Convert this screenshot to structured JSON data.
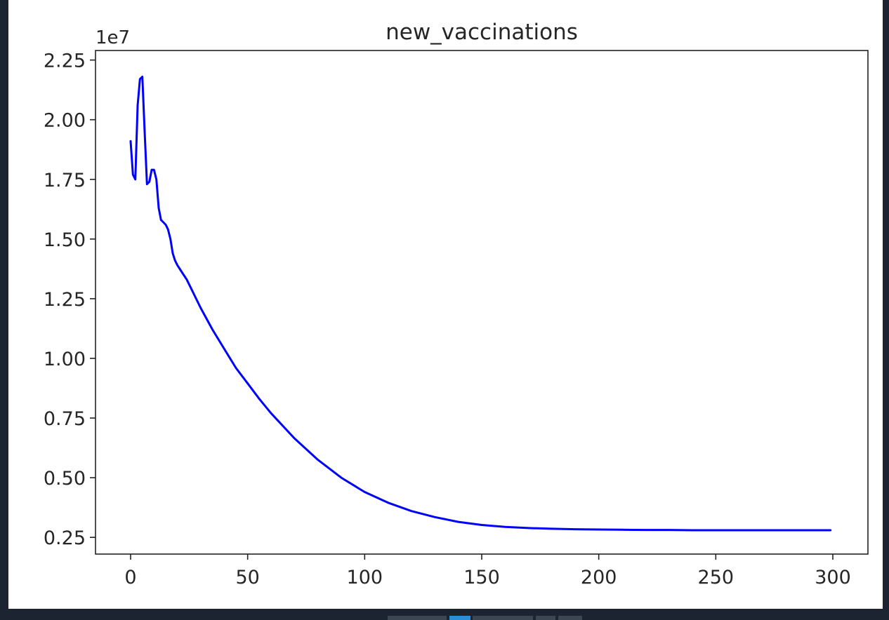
{
  "chart_data": {
    "type": "line",
    "title": "new_vaccinations",
    "xlabel": "",
    "ylabel": "",
    "y_offset_text": "1e7",
    "xlim": [
      -15,
      315
    ],
    "ylim": [
      0.18,
      2.29
    ],
    "x_ticks": [
      0,
      50,
      100,
      150,
      200,
      250,
      300
    ],
    "y_ticks": [
      0.25,
      0.5,
      0.75,
      1.0,
      1.25,
      1.5,
      1.75,
      2.0,
      2.25
    ],
    "x_tick_labels": [
      "0",
      "50",
      "100",
      "150",
      "200",
      "250",
      "300"
    ],
    "y_tick_labels": [
      "0.25",
      "0.50",
      "0.75",
      "1.00",
      "1.25",
      "1.50",
      "1.75",
      "2.00",
      "2.25"
    ],
    "grid": false,
    "series": [
      {
        "color": "#0000ff",
        "x": [
          0,
          1,
          2,
          3,
          4,
          5,
          6,
          7,
          8,
          9,
          10,
          11,
          12,
          13,
          14,
          15,
          16,
          17,
          18,
          19,
          20,
          22,
          24,
          26,
          28,
          30,
          35,
          40,
          45,
          50,
          55,
          60,
          70,
          80,
          90,
          100,
          110,
          120,
          130,
          140,
          150,
          160,
          170,
          180,
          190,
          200,
          210,
          220,
          230,
          240,
          250,
          260,
          270,
          280,
          290,
          299
        ],
        "y": [
          1.91,
          1.77,
          1.75,
          2.06,
          2.17,
          2.18,
          1.95,
          1.73,
          1.74,
          1.79,
          1.79,
          1.75,
          1.63,
          1.58,
          1.57,
          1.56,
          1.54,
          1.5,
          1.44,
          1.41,
          1.39,
          1.36,
          1.33,
          1.29,
          1.25,
          1.21,
          1.12,
          1.04,
          0.96,
          0.895,
          0.83,
          0.77,
          0.665,
          0.575,
          0.5,
          0.44,
          0.395,
          0.36,
          0.335,
          0.315,
          0.302,
          0.294,
          0.289,
          0.286,
          0.284,
          0.283,
          0.282,
          0.281,
          0.281,
          0.28,
          0.28,
          0.28,
          0.28,
          0.28,
          0.28,
          0.28
        ]
      }
    ]
  },
  "taskbar": {
    "tabs": [
      "",
      "",
      "",
      "",
      ""
    ]
  }
}
